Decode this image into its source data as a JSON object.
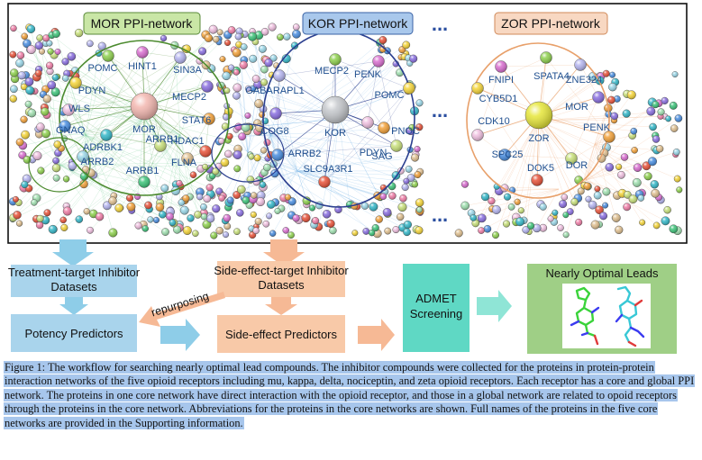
{
  "panels": {
    "mor": {
      "title": "MOR PPI-network",
      "center": "MOR",
      "proteins": [
        "POMC",
        "HINT1",
        "SIN3A",
        "PDYN",
        "MECP2",
        "WLS",
        "STAT6",
        "GNAQ",
        "ARRB1",
        "HDAC1",
        "ADRBK1",
        "ARRB2",
        "FLNA",
        "ARRB1"
      ]
    },
    "kor": {
      "title": "KOR PPI-network",
      "center": "KOR",
      "proteins": [
        "MECP2",
        "PENK",
        "GABARAPL1",
        "POMC",
        "COG8",
        "PDYN",
        "PNOC",
        "ARRB2",
        "SAG",
        "SLC9A3R1"
      ]
    },
    "zor": {
      "title": "ZOR PPI-network",
      "center": "ZOR",
      "proteins": [
        "SPATA4",
        "FNIPI",
        "ZNE324",
        "CYB5D1",
        "MOR",
        "CDK10",
        "PENK",
        "SPC25",
        "DOR",
        "DOK5"
      ]
    },
    "ellipsis": "..."
  },
  "flow": {
    "treatment_datasets": "Treatment-target Inhibitor Datasets",
    "side_effect_datasets": "Side-effect-target Inhibitor Datasets",
    "potency_predictors": "Potency Predictors",
    "side_effect_predictors": "Side-effect Predictors",
    "repurposing": "repurposing",
    "admet": "ADMET Screening",
    "leads": "Nearly Optimal Leads"
  },
  "caption": "Figure 1: The workflow for searching nearly optimal lead compounds. The inhibitor compounds were collected for the proteins in protein-protein interaction networks of the five opioid receptors including mu, kappa, delta, nociceptin, and zeta opioid receptors. Each receptor has a core and global PPI network. The proteins in one core network have direct interaction with the opioid receptor, and those in a global network are related to opoid receptors through the proteins in the core network. Abbreviations for the proteins in the core networks are shown. Full names of the proteins in the five core networks are provided in the Supporting information.",
  "colors": {
    "mor_title_bg": "#c9e6a6",
    "kor_title_bg": "#a9c8ec",
    "zor_title_bg": "#f8d8c2",
    "mor_ring": "#4b8a2e",
    "kor_ring": "#2b3f8f",
    "zor_ring": "#e8a06a",
    "blue_box": "#a9d4ec",
    "orange_box": "#f8c9a8",
    "teal_box": "#5fd8c4",
    "green_box": "#9fcf86",
    "caption_bg": "#a7c6ec",
    "label_text": "#1f4f8f"
  }
}
